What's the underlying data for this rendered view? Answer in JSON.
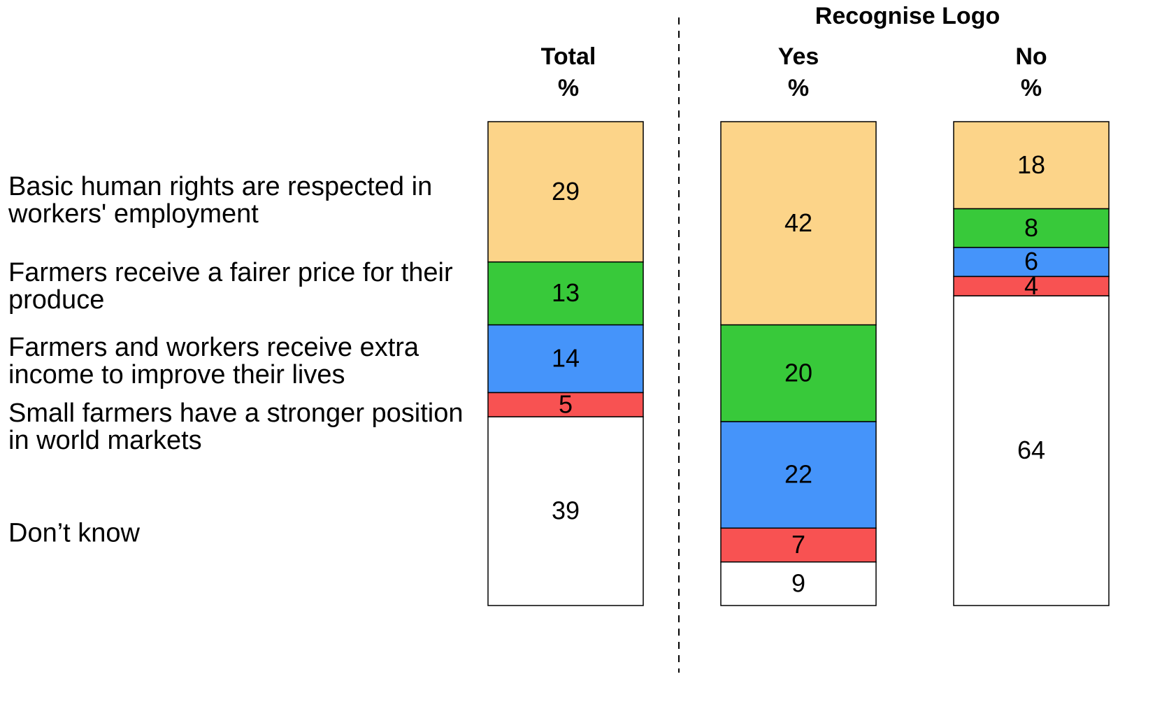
{
  "chart_data": {
    "type": "stacked-bar",
    "group_label": "Recognise Logo",
    "categories": [
      "Total",
      "Yes",
      "No"
    ],
    "column_unit": "%",
    "ylim": [
      0,
      100
    ],
    "series": [
      {
        "name": "Basic human rights are respected in workers' employment",
        "color": "#fcd489",
        "values": [
          29,
          42,
          18
        ]
      },
      {
        "name": "Farmers receive a fairer price for their produce",
        "color": "#38c93a",
        "values": [
          13,
          20,
          8
        ]
      },
      {
        "name": "Farmers and workers receive extra income to improve their lives",
        "color": "#4594fa",
        "values": [
          14,
          22,
          6
        ]
      },
      {
        "name": "Small farmers have a stronger position in world markets",
        "color": "#f85252",
        "values": [
          5,
          7,
          4
        ]
      },
      {
        "name": "Don’t know",
        "color": "#ffffff",
        "values": [
          39,
          9,
          64
        ]
      }
    ]
  }
}
